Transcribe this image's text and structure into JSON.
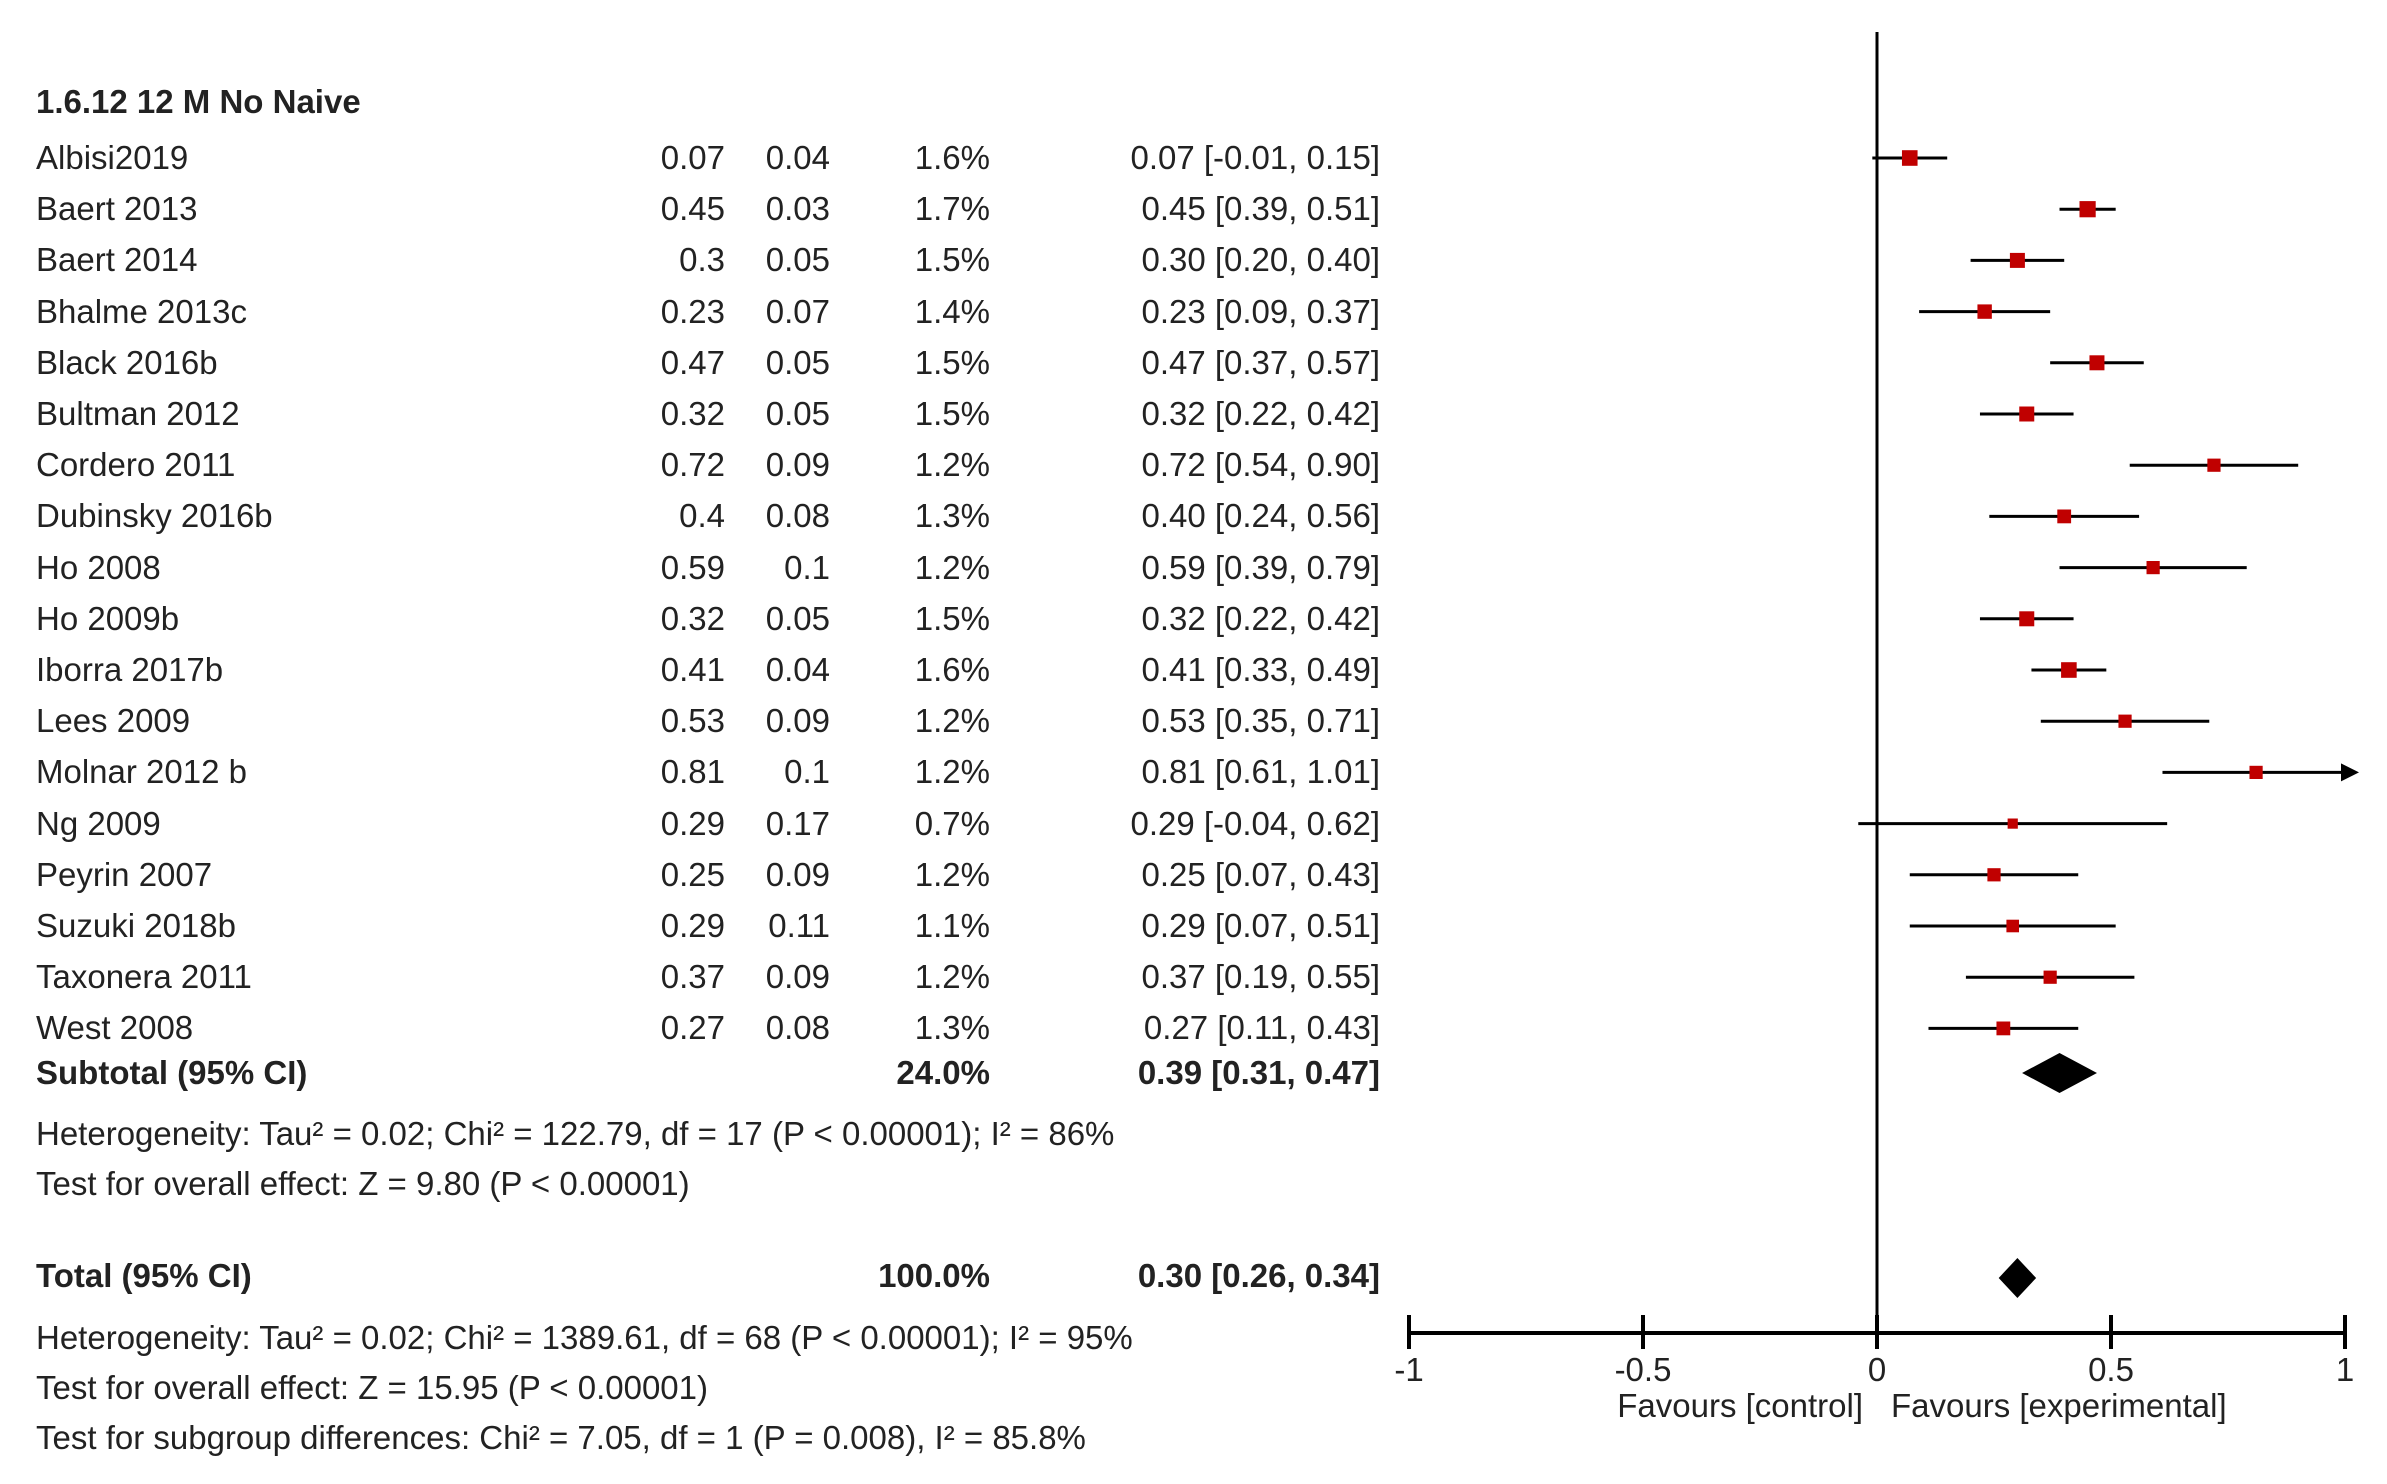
{
  "chart_data": {
    "type": "forest",
    "subgroup_title": "1.6.12 12 M No Naive",
    "studies": [
      {
        "name": "Albisi2019",
        "estimate": "0.07",
        "se": "0.04",
        "weight": "1.6%",
        "ci_text": "0.07 [-0.01, 0.15]",
        "mean": 0.07,
        "lo": -0.01,
        "hi": 0.15
      },
      {
        "name": "Baert 2013",
        "estimate": "0.45",
        "se": "0.03",
        "weight": "1.7%",
        "ci_text": "0.45 [0.39, 0.51]",
        "mean": 0.45,
        "lo": 0.39,
        "hi": 0.51
      },
      {
        "name": "Baert 2014",
        "estimate": "0.3",
        "se": "0.05",
        "weight": "1.5%",
        "ci_text": "0.30 [0.20, 0.40]",
        "mean": 0.3,
        "lo": 0.2,
        "hi": 0.4
      },
      {
        "name": "Bhalme 2013c",
        "estimate": "0.23",
        "se": "0.07",
        "weight": "1.4%",
        "ci_text": "0.23 [0.09, 0.37]",
        "mean": 0.23,
        "lo": 0.09,
        "hi": 0.37
      },
      {
        "name": "Black 2016b",
        "estimate": "0.47",
        "se": "0.05",
        "weight": "1.5%",
        "ci_text": "0.47 [0.37, 0.57]",
        "mean": 0.47,
        "lo": 0.37,
        "hi": 0.57
      },
      {
        "name": "Bultman 2012",
        "estimate": "0.32",
        "se": "0.05",
        "weight": "1.5%",
        "ci_text": "0.32 [0.22, 0.42]",
        "mean": 0.32,
        "lo": 0.22,
        "hi": 0.42
      },
      {
        "name": "Cordero 2011",
        "estimate": "0.72",
        "se": "0.09",
        "weight": "1.2%",
        "ci_text": "0.72 [0.54, 0.90]",
        "mean": 0.72,
        "lo": 0.54,
        "hi": 0.9
      },
      {
        "name": "Dubinsky 2016b",
        "estimate": "0.4",
        "se": "0.08",
        "weight": "1.3%",
        "ci_text": "0.40 [0.24, 0.56]",
        "mean": 0.4,
        "lo": 0.24,
        "hi": 0.56
      },
      {
        "name": "Ho 2008",
        "estimate": "0.59",
        "se": "0.1",
        "weight": "1.2%",
        "ci_text": "0.59 [0.39, 0.79]",
        "mean": 0.59,
        "lo": 0.39,
        "hi": 0.79
      },
      {
        "name": "Ho 2009b",
        "estimate": "0.32",
        "se": "0.05",
        "weight": "1.5%",
        "ci_text": "0.32 [0.22, 0.42]",
        "mean": 0.32,
        "lo": 0.22,
        "hi": 0.42
      },
      {
        "name": "Iborra 2017b",
        "estimate": "0.41",
        "se": "0.04",
        "weight": "1.6%",
        "ci_text": "0.41 [0.33, 0.49]",
        "mean": 0.41,
        "lo": 0.33,
        "hi": 0.49
      },
      {
        "name": "Lees 2009",
        "estimate": "0.53",
        "se": "0.09",
        "weight": "1.2%",
        "ci_text": "0.53 [0.35, 0.71]",
        "mean": 0.53,
        "lo": 0.35,
        "hi": 0.71
      },
      {
        "name": "Molnar 2012 b",
        "estimate": "0.81",
        "se": "0.1",
        "weight": "1.2%",
        "ci_text": "0.81 [0.61, 1.01]",
        "mean": 0.81,
        "lo": 0.61,
        "hi": 1.01
      },
      {
        "name": "Ng 2009",
        "estimate": "0.29",
        "se": "0.17",
        "weight": "0.7%",
        "ci_text": "0.29 [-0.04, 0.62]",
        "mean": 0.29,
        "lo": -0.04,
        "hi": 0.62
      },
      {
        "name": "Peyrin 2007",
        "estimate": "0.25",
        "se": "0.09",
        "weight": "1.2%",
        "ci_text": "0.25 [0.07, 0.43]",
        "mean": 0.25,
        "lo": 0.07,
        "hi": 0.43
      },
      {
        "name": "Suzuki 2018b",
        "estimate": "0.29",
        "se": "0.11",
        "weight": "1.1%",
        "ci_text": "0.29 [0.07, 0.51]",
        "mean": 0.29,
        "lo": 0.07,
        "hi": 0.51
      },
      {
        "name": "Taxonera 2011",
        "estimate": "0.37",
        "se": "0.09",
        "weight": "1.2%",
        "ci_text": "0.37 [0.19, 0.55]",
        "mean": 0.37,
        "lo": 0.19,
        "hi": 0.55
      },
      {
        "name": "West 2008",
        "estimate": "0.27",
        "se": "0.08",
        "weight": "1.3%",
        "ci_text": "0.27 [0.11, 0.43]",
        "mean": 0.27,
        "lo": 0.11,
        "hi": 0.43
      }
    ],
    "subtotal": {
      "label": "Subtotal (95% CI)",
      "weight": "24.0%",
      "ci_text": "0.39 [0.31, 0.47]",
      "mean": 0.39,
      "lo": 0.31,
      "hi": 0.47
    },
    "subgroup_heterogeneity": "Heterogeneity: Tau² = 0.02; Chi² = 122.79, df = 17 (P < 0.00001); I² = 86%",
    "subgroup_overall_effect": "Test for overall effect: Z = 9.80 (P < 0.00001)",
    "total": {
      "label": "Total (95% CI)",
      "weight": "100.0%",
      "ci_text": "0.30 [0.26, 0.34]",
      "mean": 0.3,
      "lo": 0.26,
      "hi": 0.34
    },
    "total_heterogeneity": "Heterogeneity: Tau² = 0.02; Chi² = 1389.61, df = 68 (P < 0.00001); I² = 95%",
    "total_overall_effect": "Test for overall effect: Z = 15.95 (P < 0.00001)",
    "subgroup_differences": "Test for subgroup differences: Chi² = 7.05, df = 1 (P = 0.008), I² = 85.8%",
    "x_ticks": [
      -1,
      -0.5,
      0,
      0.5,
      1
    ],
    "x_tick_labels": [
      "-1",
      "-0.5",
      "0",
      "0.5",
      "1"
    ],
    "xlim": [
      -1,
      1
    ],
    "favours_left": "Favours [control]",
    "favours_right": "Favours [experimental]",
    "marker_color": "#c00000",
    "line_color": "#000000"
  }
}
